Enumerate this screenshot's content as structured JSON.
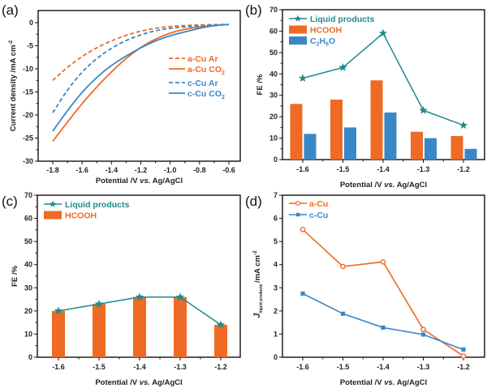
{
  "colors": {
    "orange": "#ef6a24",
    "blue": "#3a87c8",
    "teal": "#1f8a8a",
    "axis": "#111111"
  },
  "chart_data": [
    {
      "panel": "(a)",
      "type": "line",
      "xlabel": "Potential /V vs. Ag/AgCl",
      "ylabel": "Current density /mA cm-2",
      "xlim": [
        -1.85,
        -0.55
      ],
      "ylim": [
        -30,
        2
      ],
      "xticks": [
        -1.8,
        -1.6,
        -1.4,
        -1.2,
        -1.0,
        -0.8,
        -0.6
      ],
      "xtick_labels": [
        "-1.8",
        "-1.6",
        "-1.4",
        "-1.2",
        "-1.0",
        "-0.8",
        "-0.6"
      ],
      "yticks": [
        0,
        -5,
        -10,
        -15,
        -20,
        -25,
        -30
      ],
      "ytick_labels": [
        "0",
        "-5",
        "-10",
        "-15",
        "-20",
        "-25",
        "-30"
      ],
      "legend_position": "right-center",
      "series": [
        {
          "name": "a-Cu Ar",
          "color_key": "orange",
          "dash": true,
          "x": [
            -1.8,
            -1.7,
            -1.6,
            -1.5,
            -1.4,
            -1.3,
            -1.2,
            -1.1,
            -1.0,
            -0.9,
            -0.8,
            -0.7,
            -0.6
          ],
          "y": [
            -12.5,
            -9.6,
            -7.3,
            -5.4,
            -3.9,
            -2.7,
            -1.8,
            -1.2,
            -0.8,
            -0.6,
            -0.5,
            -0.4,
            -0.4
          ]
        },
        {
          "name": "a-Cu CO2",
          "color_key": "orange",
          "dash": false,
          "x": [
            -1.8,
            -1.7,
            -1.6,
            -1.5,
            -1.4,
            -1.3,
            -1.2,
            -1.1,
            -1.0,
            -0.9,
            -0.8,
            -0.7,
            -0.6
          ],
          "y": [
            -25.7,
            -21.5,
            -17.5,
            -13.9,
            -10.6,
            -7.7,
            -5.3,
            -3.5,
            -2.2,
            -1.4,
            -0.9,
            -0.6,
            -0.4
          ]
        },
        {
          "name": "c-Cu Ar",
          "color_key": "blue",
          "dash": true,
          "x": [
            -1.8,
            -1.7,
            -1.6,
            -1.5,
            -1.4,
            -1.3,
            -1.2,
            -1.1,
            -1.0,
            -0.9,
            -0.8,
            -0.7,
            -0.6
          ],
          "y": [
            -19.5,
            -14.5,
            -10.6,
            -7.7,
            -5.5,
            -3.8,
            -2.6,
            -1.7,
            -1.2,
            -0.9,
            -0.7,
            -0.5,
            -0.4
          ]
        },
        {
          "name": "c-Cu CO2",
          "color_key": "blue",
          "dash": false,
          "x": [
            -1.8,
            -1.7,
            -1.6,
            -1.5,
            -1.4,
            -1.3,
            -1.2,
            -1.1,
            -1.0,
            -0.9,
            -0.8,
            -0.7,
            -0.6
          ],
          "y": [
            -23.5,
            -19.0,
            -15.0,
            -11.8,
            -9.2,
            -7.2,
            -5.4,
            -3.9,
            -2.8,
            -2.0,
            -1.2,
            -0.6,
            -0.4
          ]
        }
      ],
      "legend": [
        {
          "label": "a-Cu Ar",
          "sub": "",
          "color_key": "orange",
          "dash": true
        },
        {
          "label": "a-Cu CO",
          "sub": "2",
          "color_key": "orange",
          "dash": false
        },
        {
          "label": "c-Cu Ar",
          "sub": "",
          "color_key": "blue",
          "dash": true
        },
        {
          "label": "c-Cu CO",
          "sub": "2",
          "color_key": "blue",
          "dash": false
        }
      ]
    },
    {
      "panel": "(b)",
      "type": "bar",
      "xlabel": "Potential /V vs. Ag/AgCl",
      "ylabel": "FE /%",
      "ylim": [
        0,
        70
      ],
      "yticks": [
        0,
        10,
        20,
        30,
        40,
        50,
        60,
        70
      ],
      "ytick_labels": [
        "0",
        "10",
        "20",
        "30",
        "40",
        "50",
        "60",
        "70"
      ],
      "categories": [
        "-1.6",
        "-1.5",
        "-1.4",
        "-1.3",
        "-1.2"
      ],
      "legend_position": "top-left",
      "series": [
        {
          "name": "HCOOH",
          "kind": "bar",
          "color_key": "orange",
          "values": [
            26,
            28,
            37,
            13,
            11
          ]
        },
        {
          "name": "C2H6O",
          "kind": "bar",
          "color_key": "blue",
          "values": [
            12,
            15,
            22,
            10,
            5
          ]
        },
        {
          "name": "Liquid products",
          "kind": "line-star",
          "color_key": "teal",
          "values": [
            38,
            43,
            59,
            23,
            16
          ]
        }
      ],
      "legend": [
        {
          "label": "Liquid products",
          "kind": "line-star",
          "color_key": "teal"
        },
        {
          "label": "HCOOH",
          "kind": "bar",
          "color_key": "orange"
        },
        {
          "label": "C2H6O",
          "kind": "bar",
          "color_key": "blue",
          "parts": [
            "C",
            "2",
            "H",
            "6",
            "O"
          ]
        }
      ]
    },
    {
      "panel": "(c)",
      "type": "bar",
      "xlabel": "Potential /V vs. Ag/AgCl",
      "ylabel": "FE /%",
      "ylim": [
        0,
        70
      ],
      "yticks": [
        0,
        10,
        20,
        30,
        40,
        50,
        60,
        70
      ],
      "ytick_labels": [
        "0",
        "10",
        "20",
        "30",
        "40",
        "50",
        "60",
        "70"
      ],
      "categories": [
        "-1.6",
        "-1.5",
        "-1.4",
        "-1.3",
        "-1.2"
      ],
      "legend_position": "top-left",
      "series": [
        {
          "name": "HCOOH",
          "kind": "bar",
          "color_key": "orange",
          "values": [
            20,
            23,
            26,
            26,
            14
          ]
        },
        {
          "name": "Liquid products",
          "kind": "line-star",
          "color_key": "teal",
          "values": [
            20,
            23,
            26,
            26,
            14
          ]
        }
      ],
      "legend": [
        {
          "label": "Liquid products",
          "kind": "line-star",
          "color_key": "teal"
        },
        {
          "label": "HCOOH",
          "kind": "bar",
          "color_key": "orange"
        }
      ]
    },
    {
      "panel": "(d)",
      "type": "line",
      "xlabel": "Potential /V vs. Ag/AgCl",
      "ylabel": "J liquid products /mA cm-2",
      "ylabel_parts": {
        "main": "J",
        "sub": "liquid products",
        "unit": "/mA cm",
        "sup": "-2"
      },
      "ylim": [
        0,
        7
      ],
      "yticks": [
        0,
        1,
        2,
        3,
        4,
        5,
        6,
        7
      ],
      "ytick_labels": [
        "0",
        "1",
        "2",
        "3",
        "4",
        "5",
        "6",
        "7"
      ],
      "categories": [
        "-1.6",
        "-1.5",
        "-1.4",
        "-1.3",
        "-1.2"
      ],
      "legend_position": "top-left",
      "series": [
        {
          "name": "a-Cu",
          "marker": "circle",
          "color_key": "orange",
          "values": [
            5.52,
            3.92,
            4.12,
            1.2,
            0.05
          ]
        },
        {
          "name": "c-Cu",
          "marker": "square",
          "color_key": "blue",
          "values": [
            2.75,
            1.88,
            1.28,
            0.98,
            0.33
          ]
        }
      ],
      "legend": [
        {
          "label": "a-Cu",
          "marker": "circle",
          "color_key": "orange"
        },
        {
          "label": "c-Cu",
          "marker": "square",
          "color_key": "blue"
        }
      ]
    }
  ],
  "panel_labels": [
    "(a)",
    "(b)",
    "(c)",
    "(d)"
  ],
  "ylabel_a": {
    "main": "Current density /mA cm",
    "sup": "-2"
  },
  "xlabel_parts": {
    "pre": "Potential /V ",
    "italic": "vs.",
    "post": " Ag/AgCl"
  }
}
